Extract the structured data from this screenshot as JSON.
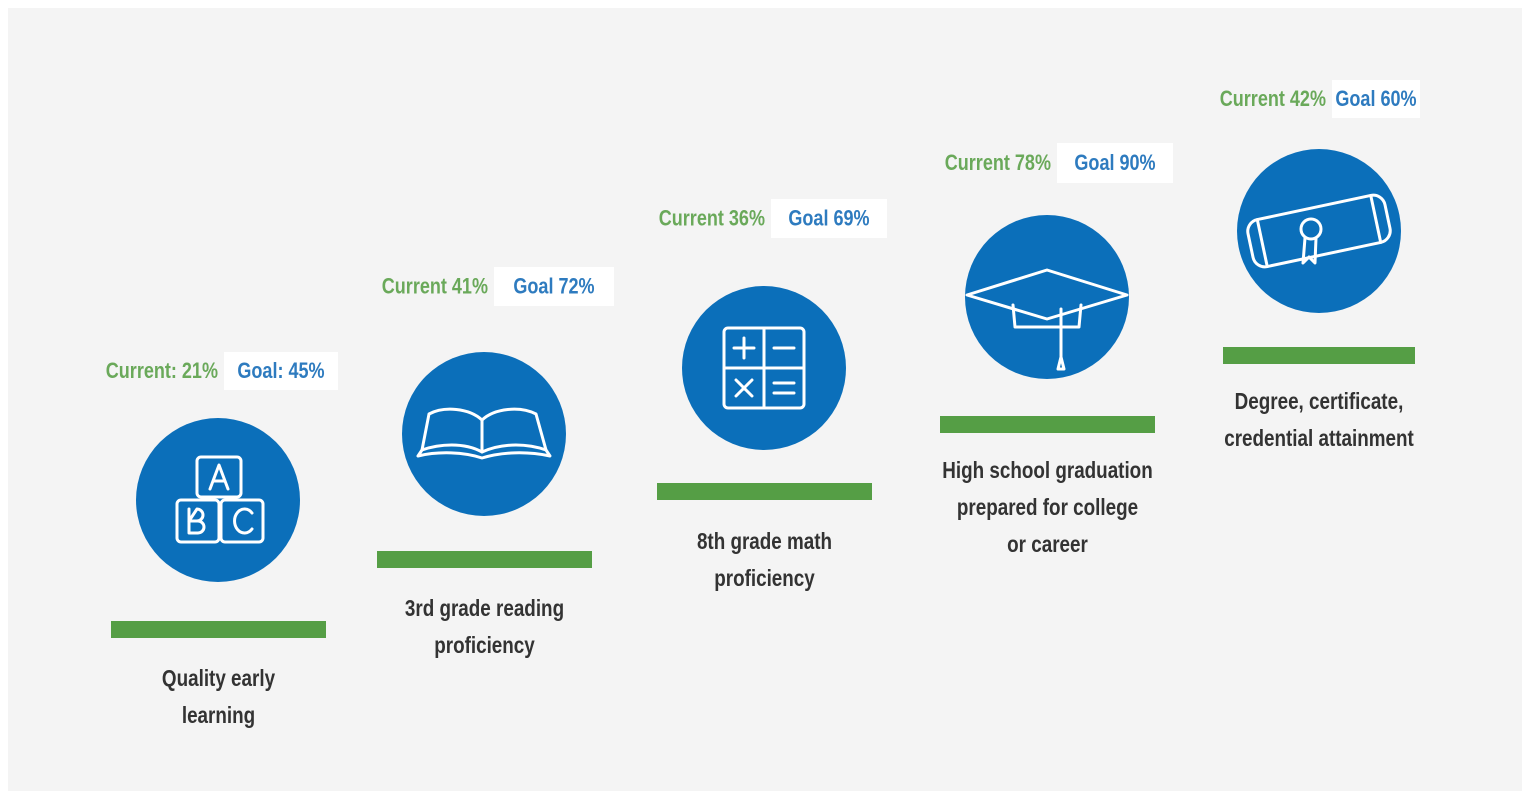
{
  "steps": [
    {
      "current": "Current: 21%",
      "goal": "Goal: 45%",
      "label": [
        "Quality early",
        "learning"
      ]
    },
    {
      "current": "Current 41%",
      "goal": "Goal 72%",
      "label": [
        "3rd grade reading",
        "proficiency"
      ]
    },
    {
      "current": "Current 36%",
      "goal": "Goal 69%",
      "label": [
        "8th grade math",
        "proficiency"
      ]
    },
    {
      "current": "Current 78%",
      "goal": "Goal 90%",
      "label": [
        "High school graduation",
        "prepared for college",
        "or career"
      ]
    },
    {
      "current": "Current 42%",
      "goal": "Goal 60%",
      "label": [
        "Degree, certificate,",
        "credential attainment"
      ]
    }
  ]
}
